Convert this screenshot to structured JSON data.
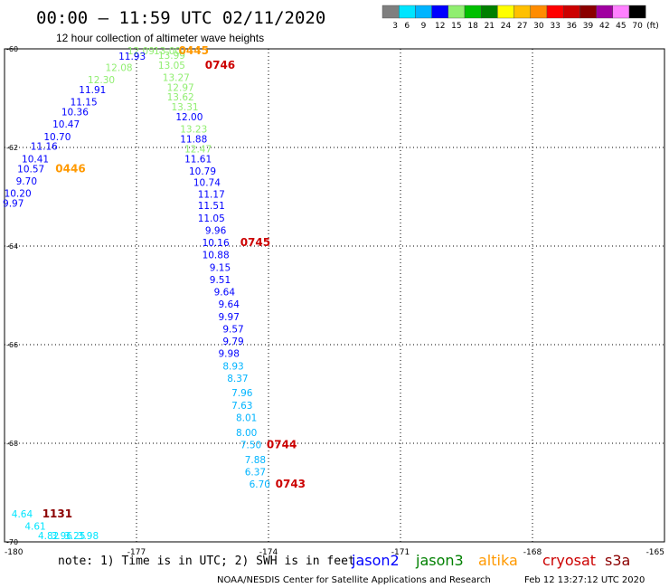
{
  "header": {
    "title": "00:00 – 11:59 UTC 02/11/2020",
    "subtitle": "12 hour collection of altimeter wave heights"
  },
  "color_scale": {
    "labels": [
      "3",
      "6",
      "9",
      "12",
      "15",
      "18",
      "21",
      "24",
      "27",
      "30",
      "33",
      "36",
      "39",
      "42",
      "45",
      "70"
    ],
    "unit": "(ft)",
    "colors": [
      "#7f7f7f",
      "#00e5ff",
      "#00b4ff",
      "#0000ff",
      "#90ee70",
      "#00c000",
      "#008000",
      "#ffff00",
      "#ffc000",
      "#ff8c00",
      "#ff0000",
      "#cc0000",
      "#8b0000",
      "#a000a0",
      "#ff80ff",
      "#000000"
    ]
  },
  "footer": {
    "note": "note: 1) Time is in UTC; 2) SWH is in feet",
    "satellites": [
      {
        "name": "jason2",
        "color": "#0000ff"
      },
      {
        "name": "jason3",
        "color": "#008000"
      },
      {
        "name": "altika",
        "color": "#ff9900"
      },
      {
        "name": "cryosat",
        "color": "#cc0000"
      },
      {
        "name": "s3a",
        "color": "#8b0000"
      }
    ],
    "credit": "NOAA/NESDIS Center for Satellite Applications and Research",
    "timestamp": "Feb 12 13:27:12 UTC 2020"
  },
  "chart_data": {
    "type": "scatter",
    "title": "00:00 – 11:59 UTC 02/11/2020",
    "subtitle": "12 hour collection of altimeter wave heights",
    "xlabel": "",
    "ylabel": "",
    "xlim": [
      -180,
      -165
    ],
    "ylim": [
      -70,
      -60
    ],
    "x_ticks": [
      "-180",
      "-177",
      "-174",
      "-171",
      "-168",
      "-165"
    ],
    "y_ticks": [
      "-60",
      "-62",
      "-64",
      "-66",
      "-68",
      "-70"
    ],
    "grid": true,
    "points": [
      {
        "lon": -176.9,
        "lat": -60.0,
        "label": "12.09",
        "color": "#90ee70"
      },
      {
        "lon": -176.3,
        "lat": -60.0,
        "label": "13.00",
        "color": "#90ee70"
      },
      {
        "lon": -176.2,
        "lat": -60.2,
        "label": "13.99",
        "color": "#90ee70"
      },
      {
        "lon": -177.1,
        "lat": -60.22,
        "label": "11.93",
        "color": "#0000ff"
      },
      {
        "lon": -176.2,
        "lat": -60.4,
        "label": "13.05",
        "color": "#90ee70"
      },
      {
        "lon": -177.4,
        "lat": -60.45,
        "label": "12.08",
        "color": "#90ee70"
      },
      {
        "lon": -176.1,
        "lat": -60.65,
        "label": "13.27",
        "color": "#90ee70"
      },
      {
        "lon": -177.8,
        "lat": -60.7,
        "label": "12.30",
        "color": "#90ee70"
      },
      {
        "lon": -176.0,
        "lat": -60.85,
        "label": "12.97",
        "color": "#90ee70"
      },
      {
        "lon": -178.0,
        "lat": -60.9,
        "label": "11.91",
        "color": "#0000ff"
      },
      {
        "lon": -176.0,
        "lat": -61.05,
        "label": "13.62",
        "color": "#90ee70"
      },
      {
        "lon": -178.2,
        "lat": -61.15,
        "label": "11.15",
        "color": "#0000ff"
      },
      {
        "lon": -175.9,
        "lat": -61.25,
        "label": "13.31",
        "color": "#90ee70"
      },
      {
        "lon": -178.4,
        "lat": -61.35,
        "label": "10.36",
        "color": "#0000ff"
      },
      {
        "lon": -175.8,
        "lat": -61.45,
        "label": "12.00",
        "color": "#0000ff"
      },
      {
        "lon": -178.6,
        "lat": -61.6,
        "label": "10.47",
        "color": "#0000ff"
      },
      {
        "lon": -175.7,
        "lat": -61.7,
        "label": "13.23",
        "color": "#90ee70"
      },
      {
        "lon": -178.8,
        "lat": -61.85,
        "label": "10.70",
        "color": "#0000ff"
      },
      {
        "lon": -175.7,
        "lat": -61.9,
        "label": "11.88",
        "color": "#0000ff"
      },
      {
        "lon": -179.1,
        "lat": -62.05,
        "label": "11.16",
        "color": "#0000ff"
      },
      {
        "lon": -175.6,
        "lat": -62.1,
        "label": "12.47",
        "color": "#90ee70"
      },
      {
        "lon": -179.3,
        "lat": -62.3,
        "label": "10.41",
        "color": "#0000ff"
      },
      {
        "lon": -175.6,
        "lat": -62.3,
        "label": "11.61",
        "color": "#0000ff"
      },
      {
        "lon": -179.4,
        "lat": -62.5,
        "label": "10.57",
        "color": "#0000ff"
      },
      {
        "lon": -175.5,
        "lat": -62.55,
        "label": "10.79",
        "color": "#0000ff"
      },
      {
        "lon": -179.5,
        "lat": -62.75,
        "label": "9.70",
        "color": "#0000ff"
      },
      {
        "lon": -175.4,
        "lat": -62.78,
        "label": "10.74",
        "color": "#0000ff"
      },
      {
        "lon": -179.7,
        "lat": -63.0,
        "label": "10.20",
        "color": "#0000ff"
      },
      {
        "lon": -175.3,
        "lat": -63.02,
        "label": "11.17",
        "color": "#0000ff"
      },
      {
        "lon": -179.8,
        "lat": -63.2,
        "label": "9.97",
        "color": "#0000ff"
      },
      {
        "lon": -175.3,
        "lat": -63.25,
        "label": "11.51",
        "color": "#0000ff"
      },
      {
        "lon": -175.3,
        "lat": -63.5,
        "label": "11.05",
        "color": "#0000ff"
      },
      {
        "lon": -175.2,
        "lat": -63.75,
        "label": "9.96",
        "color": "#0000ff"
      },
      {
        "lon": -175.2,
        "lat": -64.0,
        "label": "10.16",
        "color": "#0000ff"
      },
      {
        "lon": -175.2,
        "lat": -64.25,
        "label": "10.88",
        "color": "#0000ff"
      },
      {
        "lon": -175.1,
        "lat": -64.5,
        "label": "9.15",
        "color": "#0000ff"
      },
      {
        "lon": -175.1,
        "lat": -64.75,
        "label": "9.51",
        "color": "#0000ff"
      },
      {
        "lon": -175.0,
        "lat": -65.0,
        "label": "9.64",
        "color": "#0000ff"
      },
      {
        "lon": -174.9,
        "lat": -65.25,
        "label": "9.64",
        "color": "#0000ff"
      },
      {
        "lon": -174.9,
        "lat": -65.5,
        "label": "9.97",
        "color": "#0000ff"
      },
      {
        "lon": -174.8,
        "lat": -65.75,
        "label": "9.57",
        "color": "#0000ff"
      },
      {
        "lon": -174.8,
        "lat": -66.0,
        "label": "9.79",
        "color": "#0000ff"
      },
      {
        "lon": -174.9,
        "lat": -66.25,
        "label": "9.98",
        "color": "#0000ff"
      },
      {
        "lon": -174.8,
        "lat": -66.5,
        "label": "8.93",
        "color": "#00b4ff"
      },
      {
        "lon": -174.7,
        "lat": -66.75,
        "label": "8.37",
        "color": "#00b4ff"
      },
      {
        "lon": -174.6,
        "lat": -67.05,
        "label": "7.96",
        "color": "#00b4ff"
      },
      {
        "lon": -174.6,
        "lat": -67.3,
        "label": "7.63",
        "color": "#00b4ff"
      },
      {
        "lon": -174.5,
        "lat": -67.55,
        "label": "8.01",
        "color": "#00b4ff"
      },
      {
        "lon": -174.5,
        "lat": -67.85,
        "label": "8.00",
        "color": "#00b4ff"
      },
      {
        "lon": -174.4,
        "lat": -68.1,
        "label": "7.50",
        "color": "#00b4ff"
      },
      {
        "lon": -174.3,
        "lat": -68.4,
        "label": "7.88",
        "color": "#00b4ff"
      },
      {
        "lon": -174.3,
        "lat": -68.65,
        "label": "6.37",
        "color": "#00b4ff"
      },
      {
        "lon": -174.2,
        "lat": -68.9,
        "label": "6.70",
        "color": "#00b4ff"
      },
      {
        "lon": -179.6,
        "lat": -69.5,
        "label": "4.64",
        "color": "#00e5ff"
      },
      {
        "lon": -179.3,
        "lat": -69.75,
        "label": "4.61",
        "color": "#00e5ff"
      },
      {
        "lon": -179.0,
        "lat": -70.0,
        "label": "4.82",
        "color": "#00e5ff"
      },
      {
        "lon": -178.7,
        "lat": -70.25,
        "label": "3.96",
        "color": "#00e5ff"
      },
      {
        "lon": -178.4,
        "lat": -70.5,
        "label": "3.25",
        "color": "#00e5ff"
      },
      {
        "lon": -178.1,
        "lat": -70.75,
        "label": "3.98",
        "color": "#00e5ff"
      }
    ],
    "annotations": [
      {
        "text": "0445",
        "lon": -175.7,
        "lat": -60.0,
        "color": "#ff9900"
      },
      {
        "text": "0746",
        "lon": -175.1,
        "lat": -60.4,
        "color": "#cc0000"
      },
      {
        "text": "0446",
        "lon": -178.5,
        "lat": -62.5,
        "color": "#ff9900"
      },
      {
        "text": "0745",
        "lon": -174.3,
        "lat": -64.0,
        "color": "#cc0000"
      },
      {
        "text": "0744",
        "lon": -173.7,
        "lat": -68.1,
        "color": "#cc0000"
      },
      {
        "text": "0743",
        "lon": -173.5,
        "lat": -68.9,
        "color": "#cc0000"
      },
      {
        "text": "1131",
        "lon": -178.8,
        "lat": -69.5,
        "color": "#8b0000"
      }
    ]
  }
}
